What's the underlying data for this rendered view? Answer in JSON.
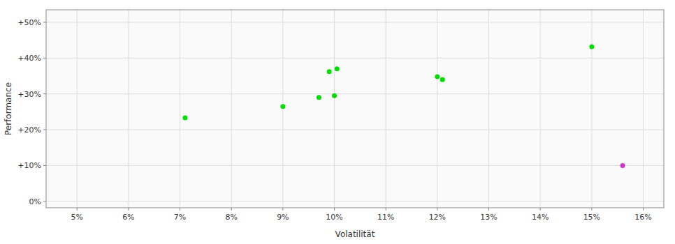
{
  "chart_data": {
    "type": "scatter",
    "xlabel": "Volatilität",
    "ylabel": "Performance",
    "xlim": [
      0.044,
      0.164
    ],
    "ylim": [
      -0.018,
      0.535
    ],
    "xticks": [
      {
        "value": 0.05,
        "label": "5%"
      },
      {
        "value": 0.06,
        "label": "6%"
      },
      {
        "value": 0.07,
        "label": "7%"
      },
      {
        "value": 0.08,
        "label": "8%"
      },
      {
        "value": 0.09,
        "label": "9%"
      },
      {
        "value": 0.1,
        "label": "10%"
      },
      {
        "value": 0.11,
        "label": "11%"
      },
      {
        "value": 0.12,
        "label": "12%"
      },
      {
        "value": 0.13,
        "label": "13%"
      },
      {
        "value": 0.14,
        "label": "14%"
      },
      {
        "value": 0.15,
        "label": "15%"
      },
      {
        "value": 0.16,
        "label": "16%"
      }
    ],
    "yticks": [
      {
        "value": 0.0,
        "label": "0%"
      },
      {
        "value": 0.1,
        "label": "+10%"
      },
      {
        "value": 0.2,
        "label": "+20%"
      },
      {
        "value": 0.3,
        "label": "+30%"
      },
      {
        "value": 0.4,
        "label": "+40%"
      },
      {
        "value": 0.5,
        "label": "+50%"
      }
    ],
    "grid": true,
    "series": [
      {
        "color": "#00dd00",
        "x": [
          0.071,
          0.09,
          0.097,
          0.1,
          0.099,
          0.1005,
          0.12,
          0.121,
          0.15
        ],
        "values": [
          0.233,
          0.265,
          0.29,
          0.295,
          0.362,
          0.37,
          0.348,
          0.34,
          0.432
        ]
      },
      {
        "color": "#cc33cc",
        "x": [
          0.156
        ],
        "values": [
          0.1
        ]
      }
    ]
  }
}
